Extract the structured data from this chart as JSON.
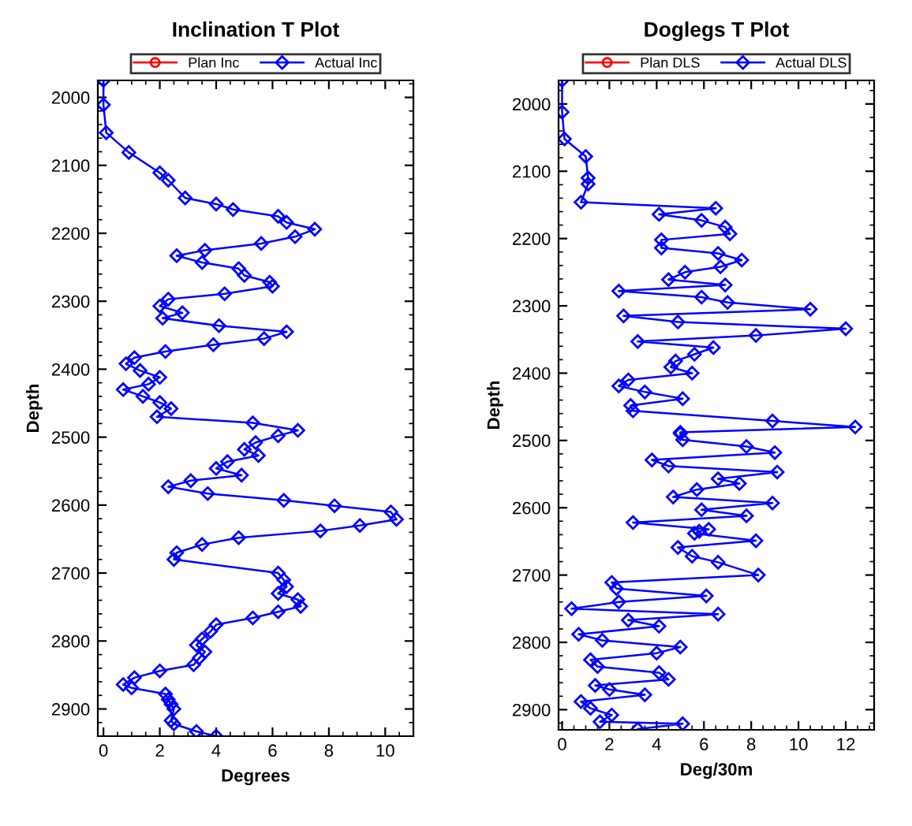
{
  "chart_data": [
    {
      "type": "line",
      "title": "Inclination T Plot",
      "xlabel": "Degrees",
      "ylabel": "Depth",
      "xlim": [
        -0.2,
        11
      ],
      "xticks": [
        0,
        2,
        4,
        6,
        8,
        10
      ],
      "ylim": [
        2940,
        1975
      ],
      "yticks": [
        2000,
        2100,
        2200,
        2300,
        2400,
        2500,
        2600,
        2700,
        2800,
        2900
      ],
      "grid": false,
      "legend": "top",
      "marker": "diamond",
      "line_style": "solid",
      "series": [
        {
          "name": "Plan Inc",
          "color": "#ff0000",
          "marker": "circle"
        },
        {
          "name": "Actual Inc",
          "color": "#0000ff",
          "x": [
            0.0,
            0.0,
            0.1,
            0.9,
            2.0,
            2.3,
            2.9,
            4.0,
            4.6,
            6.2,
            6.5,
            7.5,
            6.8,
            5.6,
            3.6,
            2.6,
            3.5,
            4.8,
            5.0,
            5.9,
            6.0,
            4.3,
            2.3,
            2.0,
            2.8,
            2.1,
            4.1,
            6.5,
            5.7,
            3.9,
            2.2,
            1.1,
            0.8,
            1.3,
            2.0,
            1.6,
            0.7,
            1.4,
            2.0,
            2.4,
            1.9,
            5.3,
            6.9,
            6.2,
            5.4,
            5.0,
            5.5,
            4.4,
            4.0,
            4.9,
            3.1,
            2.3,
            3.7,
            6.4,
            8.2,
            10.2,
            10.4,
            9.1,
            7.7,
            4.8,
            3.5,
            2.6,
            2.5,
            6.2,
            6.4,
            6.5,
            6.2,
            6.9,
            7.0,
            6.2,
            5.3,
            4.0,
            3.8,
            3.5,
            3.3,
            3.6,
            3.4,
            3.2,
            2.0,
            1.1,
            0.7,
            1.0,
            2.2,
            2.3,
            2.4,
            2.5,
            2.4,
            2.5,
            3.3,
            4.0
          ],
          "values": [
            1975,
            2011,
            2052,
            2081,
            2111,
            2122,
            2148,
            2157,
            2165,
            2175,
            2184,
            2194,
            2205,
            2215,
            2225,
            2233,
            2243,
            2252,
            2262,
            2272,
            2278,
            2289,
            2297,
            2307,
            2317,
            2325,
            2336,
            2345,
            2355,
            2364,
            2374,
            2383,
            2392,
            2402,
            2412,
            2422,
            2430,
            2440,
            2449,
            2458,
            2470,
            2479,
            2490,
            2498,
            2508,
            2518,
            2527,
            2536,
            2546,
            2556,
            2564,
            2573,
            2583,
            2593,
            2601,
            2610,
            2621,
            2630,
            2638,
            2648,
            2658,
            2670,
            2680,
            2700,
            2710,
            2720,
            2730,
            2739,
            2749,
            2757,
            2766,
            2776,
            2786,
            2797,
            2806,
            2816,
            2825,
            2835,
            2844,
            2854,
            2864,
            2869,
            2878,
            2886,
            2893,
            2900,
            2917,
            2922,
            2933,
            2940
          ]
        }
      ]
    },
    {
      "type": "line",
      "title": "Doglegs T Plot",
      "xlabel": "Deg/30m",
      "ylabel": "Depth",
      "xlim": [
        -0.15,
        13.2
      ],
      "xticks": [
        0,
        2,
        4,
        6,
        8,
        10,
        12
      ],
      "ylim": [
        2930,
        1965
      ],
      "yticks": [
        2000,
        2100,
        2200,
        2300,
        2400,
        2500,
        2600,
        2700,
        2800,
        2900
      ],
      "grid": false,
      "legend": "top",
      "marker": "diamond",
      "line_style": "solid",
      "series": [
        {
          "name": "Plan DLS",
          "color": "#ff0000",
          "marker": "circle"
        },
        {
          "name": "Actual DLS",
          "color": "#0000ff",
          "x": [
            0.0,
            0.0,
            0.1,
            1.0,
            1.1,
            1.1,
            0.8,
            6.5,
            4.1,
            5.9,
            6.9,
            7.1,
            4.2,
            4.2,
            6.6,
            7.6,
            6.7,
            5.2,
            4.5,
            6.9,
            2.4,
            5.9,
            7.0,
            10.5,
            2.6,
            4.9,
            12.0,
            8.2,
            3.2,
            6.4,
            5.6,
            4.8,
            4.6,
            5.5,
            2.8,
            2.4,
            3.5,
            5.1,
            2.9,
            3.0,
            8.9,
            12.4,
            5.0,
            5.0,
            5.1,
            7.8,
            9.0,
            3.8,
            4.5,
            9.1,
            6.6,
            7.5,
            5.7,
            4.7,
            8.9,
            5.9,
            7.8,
            3.0,
            6.2,
            5.8,
            5.6,
            8.2,
            4.9,
            5.5,
            6.6,
            8.3,
            2.1,
            2.3,
            6.1,
            2.4,
            0.4,
            6.6,
            2.8,
            4.1,
            0.7,
            1.7,
            5.0,
            4.0,
            1.2,
            1.5,
            4.1,
            4.5,
            1.4,
            2.0,
            3.5,
            0.8,
            1.2,
            2.1,
            1.6,
            5.1,
            3.2
          ],
          "values": [
            1965,
            2012,
            2052,
            2078,
            2110,
            2119,
            2146,
            2155,
            2164,
            2173,
            2183,
            2193,
            2202,
            2214,
            2222,
            2232,
            2242,
            2250,
            2261,
            2269,
            2278,
            2287,
            2295,
            2305,
            2315,
            2324,
            2334,
            2344,
            2353,
            2362,
            2372,
            2382,
            2391,
            2400,
            2410,
            2419,
            2428,
            2438,
            2448,
            2456,
            2471,
            2480,
            2488,
            2490,
            2499,
            2509,
            2518,
            2529,
            2538,
            2547,
            2557,
            2564,
            2573,
            2584,
            2593,
            2603,
            2612,
            2622,
            2632,
            2635,
            2638,
            2649,
            2659,
            2672,
            2681,
            2700,
            2711,
            2720,
            2731,
            2740,
            2750,
            2758,
            2767,
            2776,
            2788,
            2797,
            2807,
            2816,
            2826,
            2836,
            2845,
            2855,
            2864,
            2870,
            2878,
            2888,
            2898,
            2908,
            2918,
            2921,
            2929
          ]
        }
      ]
    }
  ]
}
